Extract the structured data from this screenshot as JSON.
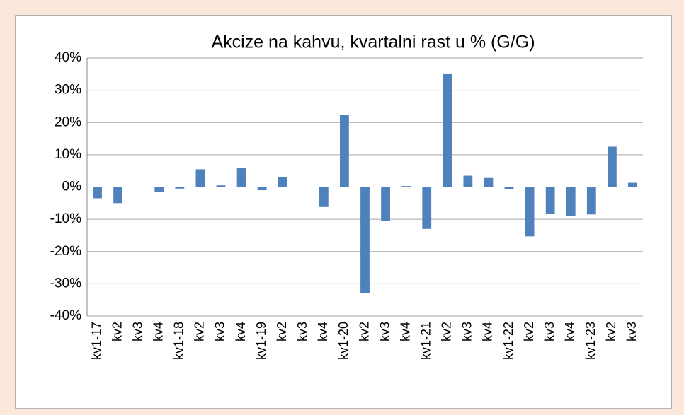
{
  "chart_data": {
    "type": "bar",
    "title": "Akcize na kahvu, kvartalni rast u % (G/G)",
    "categories": [
      "kv1-17",
      "kv2",
      "kv3",
      "kv4",
      "kv1-18",
      "kv2",
      "kv3",
      "kv4",
      "kv1-19",
      "kv2",
      "kv3",
      "kv4",
      "kv1-20",
      "kv2",
      "kv3",
      "kv4",
      "kv1-21",
      "kv2",
      "kv3",
      "kv4",
      "kv1-22",
      "kv2",
      "kv3",
      "kv4",
      "kv1-23",
      "kv2",
      "kv3"
    ],
    "values": [
      -3.5,
      -5,
      0,
      -1.5,
      -0.5,
      5.5,
      0.5,
      5.8,
      -1,
      3,
      0,
      -6.2,
      22.3,
      -32.8,
      -10.5,
      0.3,
      -13,
      35.2,
      3.5,
      2.8,
      -0.7,
      -15.3,
      -8.3,
      -9,
      -8.5,
      12.5,
      1.3
    ],
    "color": "#4f81bd",
    "ylim": [
      -40,
      40
    ],
    "yticks": [
      {
        "value": -40,
        "label": "-40%"
      },
      {
        "value": -30,
        "label": "-30%"
      },
      {
        "value": -20,
        "label": "-20%"
      },
      {
        "value": -10,
        "label": "-10%"
      },
      {
        "value": 0,
        "label": "0%"
      },
      {
        "value": 10,
        "label": "10%"
      },
      {
        "value": 20,
        "label": "20%"
      },
      {
        "value": 30,
        "label": "30%"
      },
      {
        "value": 40,
        "label": "40%"
      }
    ],
    "grid": true
  }
}
